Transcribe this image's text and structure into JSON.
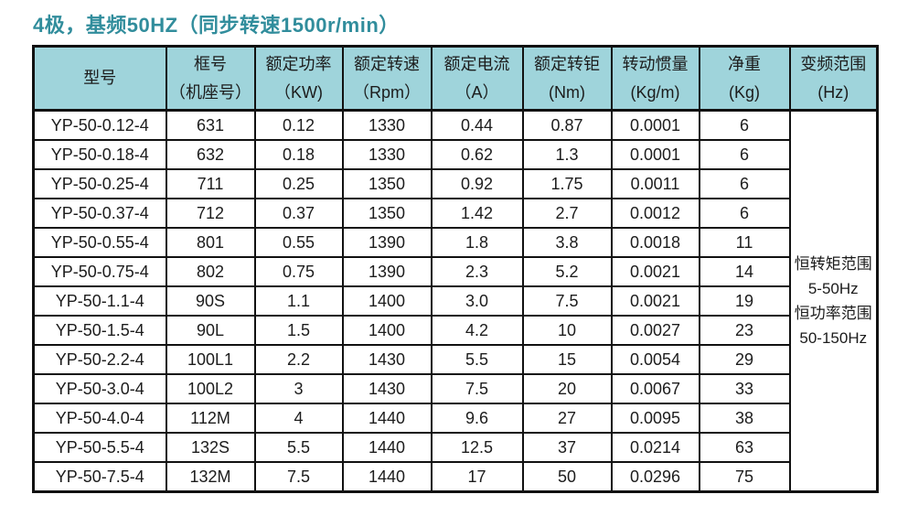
{
  "title": "4极，基频50HZ（同步转速1500r/min）",
  "colors": {
    "title_text": "#318d9c",
    "header_bg": "#9fd4db",
    "border": "#111111",
    "cell_bg": "#ffffff",
    "body_text": "#1c1c1c"
  },
  "table": {
    "headers": [
      {
        "lines": [
          "型号"
        ]
      },
      {
        "lines": [
          "框号",
          "（机座号）"
        ]
      },
      {
        "lines": [
          "额定功率",
          "（KW)"
        ]
      },
      {
        "lines": [
          "额定转速",
          "（Rpm）"
        ]
      },
      {
        "lines": [
          "额定电流",
          "（A）"
        ]
      },
      {
        "lines": [
          "额定转钜",
          "(Nm)"
        ]
      },
      {
        "lines": [
          "转动惯量",
          "(Kg/m)"
        ]
      },
      {
        "lines": [
          "净重",
          "(Kg)"
        ]
      },
      {
        "lines": [
          "变频范围",
          "(Hz)"
        ]
      }
    ],
    "rows": [
      [
        "YP-50-0.12-4",
        "631",
        "0.12",
        "1330",
        "0.44",
        "0.87",
        "0.0001",
        "6"
      ],
      [
        "YP-50-0.18-4",
        "632",
        "0.18",
        "1330",
        "0.62",
        "1.3",
        "0.0001",
        "6"
      ],
      [
        "YP-50-0.25-4",
        "711",
        "0.25",
        "1350",
        "0.92",
        "1.75",
        "0.0011",
        "6"
      ],
      [
        "YP-50-0.37-4",
        "712",
        "0.37",
        "1350",
        "1.42",
        "2.7",
        "0.0012",
        "6"
      ],
      [
        "YP-50-0.55-4",
        "801",
        "0.55",
        "1390",
        "1.8",
        "3.8",
        "0.0018",
        "11"
      ],
      [
        "YP-50-0.75-4",
        "802",
        "0.75",
        "1390",
        "2.3",
        "5.2",
        "0.0021",
        "14"
      ],
      [
        "YP-50-1.1-4",
        "90S",
        "1.1",
        "1400",
        "3.0",
        "7.5",
        "0.0021",
        "19"
      ],
      [
        "YP-50-1.5-4",
        "90L",
        "1.5",
        "1400",
        "4.2",
        "10",
        "0.0027",
        "23"
      ],
      [
        "YP-50-2.2-4",
        "100L1",
        "2.2",
        "1430",
        "5.5",
        "15",
        "0.0054",
        "29"
      ],
      [
        "YP-50-3.0-4",
        "100L2",
        "3",
        "1430",
        "7.5",
        "20",
        "0.0067",
        "33"
      ],
      [
        "YP-50-4.0-4",
        "112M",
        "4",
        "1440",
        "9.6",
        "27",
        "0.0095",
        "38"
      ],
      [
        "YP-50-5.5-4",
        "132S",
        "5.5",
        "1440",
        "12.5",
        "37",
        "0.0214",
        "63"
      ],
      [
        "YP-50-7.5-4",
        "132M",
        "7.5",
        "1440",
        "17",
        "50",
        "0.0296",
        "75"
      ]
    ],
    "span_cell": {
      "lines": [
        "恒转矩范围",
        "5-50Hz",
        "恒功率范围",
        "50-150Hz"
      ]
    }
  }
}
